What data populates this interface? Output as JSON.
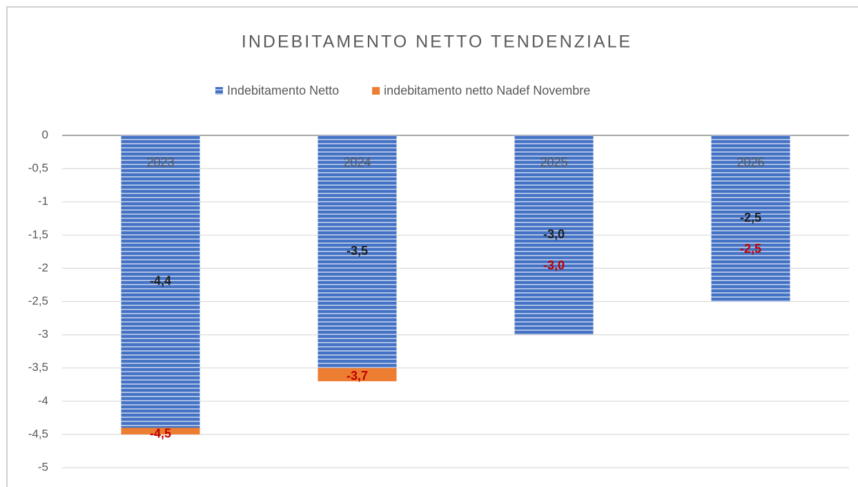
{
  "chart_data": {
    "type": "bar",
    "title": "INDEBITAMENTO NETTO TENDENZIALE",
    "categories": [
      "2023",
      "2024",
      "2025",
      "2026"
    ],
    "series": [
      {
        "name": "Indebitamento Netto",
        "color": "#4472c4",
        "label_color": "#1f1f1f",
        "values": [
          -4.4,
          -3.5,
          -3.0,
          -2.5
        ],
        "value_labels": [
          "-4,4",
          "-3,5",
          "-3,0",
          "-2,5"
        ]
      },
      {
        "name": "indebitamento netto Nadef Novembre",
        "color": "#ed7d31",
        "label_color": "#c00000",
        "values": [
          -4.5,
          -3.7,
          -3.0,
          -2.5
        ],
        "value_labels": [
          "-4,5",
          "-3,7",
          "-3,0",
          "-2,5"
        ]
      }
    ],
    "ylim": [
      -5,
      0
    ],
    "yticks": [
      {
        "value": 0,
        "label": "0"
      },
      {
        "value": -0.5,
        "label": "-0,5"
      },
      {
        "value": -1,
        "label": "-1"
      },
      {
        "value": -1.5,
        "label": "-1,5"
      },
      {
        "value": -2,
        "label": "-2"
      },
      {
        "value": -2.5,
        "label": "-2,5"
      },
      {
        "value": -3,
        "label": "-3"
      },
      {
        "value": -3.5,
        "label": "-3,5"
      },
      {
        "value": -4,
        "label": "-4"
      },
      {
        "value": -4.5,
        "label": "-4,5"
      },
      {
        "value": -5,
        "label": "-5"
      }
    ],
    "grid": true,
    "legend": "top"
  }
}
